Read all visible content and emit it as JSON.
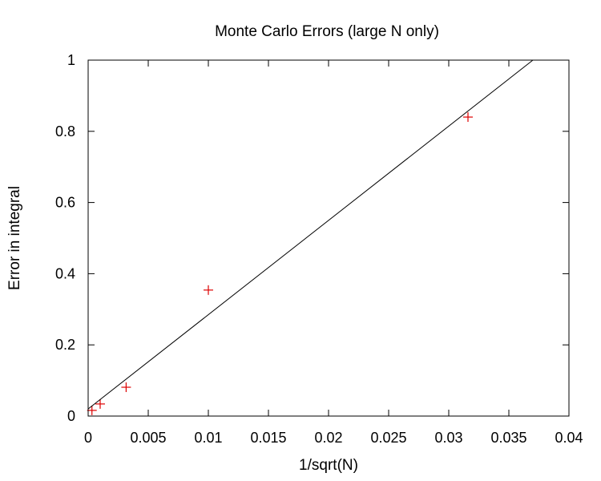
{
  "chart_data": {
    "type": "scatter",
    "title": "Monte Carlo Errors (large N only)",
    "xlabel": "1/sqrt(N)",
    "ylabel": "Error in integral",
    "xlim": [
      0,
      0.04
    ],
    "ylim": [
      0,
      1
    ],
    "xticks": [
      0,
      0.005,
      0.01,
      0.015,
      0.02,
      0.025,
      0.03,
      0.035,
      0.04
    ],
    "xtick_labels": [
      "0",
      "0.005",
      "0.01",
      "0.015",
      "0.02",
      "0.025",
      "0.03",
      "0.035",
      "0.04"
    ],
    "yticks": [
      0,
      0.2,
      0.4,
      0.6,
      0.8,
      1
    ],
    "ytick_labels": [
      "0",
      "0.2",
      "0.4",
      "0.6",
      "0.8",
      "1"
    ],
    "grid": false,
    "series": [
      {
        "type": "scatter",
        "marker": "plus",
        "color": "#dd0000",
        "x": [
          0.000316,
          0.001,
          0.00316,
          0.01,
          0.0316
        ],
        "y": [
          0.016,
          0.034,
          0.081,
          0.354,
          0.84
        ]
      },
      {
        "type": "line",
        "color": "#000000",
        "x": [
          0,
          0.037
        ],
        "y": [
          0.02,
          1.0
        ]
      }
    ]
  }
}
